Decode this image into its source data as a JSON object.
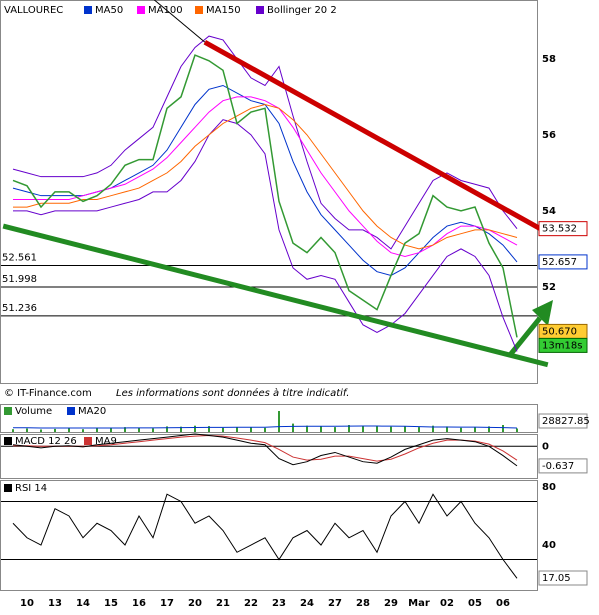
{
  "chart_data": [
    {
      "type": "price",
      "title": "VALLOUREC",
      "ylim": [
        49.47,
        59.55
      ],
      "yticks": [
        52,
        54,
        56,
        58
      ],
      "price": {
        "color": "#339933",
        "values": [
          54.8,
          54.66,
          54.1,
          54.5,
          54.5,
          54.25,
          54.4,
          54.7,
          55.2,
          55.35,
          55.35,
          56.7,
          57.0,
          58.1,
          57.95,
          57.7,
          56.3,
          56.6,
          56.7,
          54.25,
          53.15,
          52.9,
          53.3,
          52.9,
          51.9,
          51.65,
          51.4,
          52.3,
          53.15,
          53.4,
          54.4,
          54.1,
          54.0,
          54.1,
          53.15,
          52.5,
          50.67
        ],
        "last_label": "50.670",
        "timer": "13m18s"
      },
      "series": [
        {
          "name": "MA50",
          "color": "#0033cc",
          "values": [
            54.6,
            54.5,
            54.4,
            54.4,
            54.4,
            54.4,
            54.5,
            54.6,
            54.8,
            55.0,
            55.2,
            55.6,
            56.2,
            56.8,
            57.2,
            57.3,
            57.1,
            56.9,
            56.8,
            56.3,
            55.3,
            54.5,
            53.9,
            53.5,
            53.1,
            52.7,
            52.4,
            52.3,
            52.5,
            52.9,
            53.3,
            53.6,
            53.7,
            53.6,
            53.4,
            53.1,
            52.657
          ]
        },
        {
          "name": "MA100",
          "color": "#ff00ff",
          "values": [
            54.3,
            54.3,
            54.3,
            54.3,
            54.3,
            54.4,
            54.5,
            54.6,
            54.7,
            54.9,
            55.1,
            55.4,
            55.8,
            56.2,
            56.6,
            56.9,
            57.0,
            57.0,
            56.9,
            56.7,
            56.2,
            55.6,
            55.0,
            54.5,
            54.0,
            53.6,
            53.2,
            52.9,
            52.8,
            52.9,
            53.1,
            53.4,
            53.6,
            53.6,
            53.5,
            53.3,
            53.1
          ]
        },
        {
          "name": "MA150",
          "color": "#ff6600",
          "values": [
            54.1,
            54.1,
            54.2,
            54.2,
            54.2,
            54.3,
            54.3,
            54.4,
            54.5,
            54.6,
            54.8,
            55.0,
            55.3,
            55.7,
            56.0,
            56.3,
            56.5,
            56.7,
            56.8,
            56.7,
            56.4,
            56.0,
            55.5,
            55.0,
            54.5,
            54.0,
            53.6,
            53.3,
            53.1,
            53.0,
            53.1,
            53.3,
            53.4,
            53.5,
            53.5,
            53.4,
            53.3
          ]
        }
      ],
      "bollinger": {
        "name": "Bollinger 20 2",
        "color": "#6600cc",
        "upper": [
          55.1,
          55.0,
          54.9,
          54.9,
          54.9,
          54.9,
          55.0,
          55.2,
          55.6,
          55.9,
          56.2,
          57.0,
          57.8,
          58.3,
          58.6,
          58.5,
          58.0,
          57.5,
          57.3,
          57.8,
          56.5,
          55.3,
          54.2,
          53.8,
          53.5,
          53.5,
          53.3,
          53.0,
          53.6,
          54.2,
          54.8,
          55.0,
          54.8,
          54.7,
          54.6,
          54.0,
          53.532
        ],
        "lower": [
          54.0,
          54.0,
          53.9,
          54.0,
          54.0,
          54.0,
          54.0,
          54.1,
          54.2,
          54.3,
          54.5,
          54.5,
          54.8,
          55.3,
          56.0,
          56.4,
          56.3,
          56.0,
          55.5,
          53.5,
          52.5,
          52.2,
          52.3,
          52.2,
          51.6,
          51.0,
          50.8,
          51.0,
          51.3,
          51.8,
          52.3,
          52.8,
          53.0,
          52.8,
          52.3,
          51.2,
          50.3
        ]
      },
      "levels": [
        52.561,
        51.998,
        51.236
      ],
      "trendlines": [
        {
          "color": "#cc0000",
          "x": [
            13.7,
            38.2
          ],
          "y": [
            58.44,
            53.42
          ]
        },
        {
          "color": "#228b22",
          "x": [
            -0.7,
            38.2
          ],
          "y": [
            53.6,
            49.95
          ]
        },
        {
          "color": "#000000",
          "x": [
            10.1,
            13.7
          ],
          "y": [
            59.55,
            58.44
          ]
        }
      ]
    },
    {
      "type": "volume",
      "ylim": [
        0,
        200000
      ],
      "series": [
        {
          "name": "Volume",
          "color": "#339933",
          "values": [
            20000,
            25000,
            18000,
            22000,
            30000,
            20000,
            25000,
            28000,
            35000,
            30000,
            26000,
            40000,
            38000,
            45000,
            42000,
            30000,
            35000,
            32000,
            30000,
            150000,
            60000,
            45000,
            40000,
            35000,
            50000,
            45000,
            40000,
            38000,
            42000,
            35000,
            45000,
            40000,
            30000,
            35000,
            40000,
            50000,
            25000
          ]
        },
        {
          "name": "MA20",
          "color": "#0033cc",
          "values": [
            30000,
            30000,
            29000,
            29000,
            29000,
            28500,
            28500,
            28500,
            29000,
            29500,
            29500,
            30000,
            31000,
            32000,
            33000,
            33000,
            33500,
            34000,
            34000,
            38000,
            40000,
            41000,
            41000,
            41500,
            42000,
            42500,
            42500,
            42000,
            41500,
            38000,
            36000,
            35500,
            35000,
            34500,
            33000,
            31000,
            28827.85
          ]
        }
      ]
    },
    {
      "type": "macd",
      "ylim": [
        -1.03,
        0.4
      ],
      "yticks": [
        0
      ],
      "series": [
        {
          "name": "MACD 12 26",
          "color": "#000000",
          "values": [
            0.05,
            0,
            -0.05,
            0,
            0.02,
            -0.02,
            0.05,
            0.1,
            0.15,
            0.2,
            0.25,
            0.3,
            0.35,
            0.4,
            0.35,
            0.3,
            0.2,
            0.1,
            0.05,
            -0.4,
            -0.6,
            -0.5,
            -0.3,
            -0.2,
            -0.35,
            -0.5,
            -0.55,
            -0.35,
            -0.1,
            0.05,
            0.2,
            0.25,
            0.2,
            0.15,
            0,
            -0.3,
            -0.637
          ]
        },
        {
          "name": "MA9",
          "color": "#cc3333",
          "values": [
            0.02,
            0.02,
            0,
            0,
            0,
            0,
            0.02,
            0.05,
            0.1,
            0.15,
            0.2,
            0.25,
            0.3,
            0.33,
            0.35,
            0.33,
            0.27,
            0.2,
            0.12,
            -0.1,
            -0.35,
            -0.45,
            -0.42,
            -0.32,
            -0.32,
            -0.4,
            -0.48,
            -0.42,
            -0.25,
            -0.05,
            0.1,
            0.2,
            0.2,
            0.17,
            0.07,
            -0.15,
            -0.45
          ]
        }
      ]
    },
    {
      "type": "rsi",
      "ylim": [
        9,
        84.8
      ],
      "yticks": [
        40,
        80
      ],
      "levels": [
        30,
        70
      ],
      "categories": [
        null,
        "10",
        null,
        "13",
        null,
        "14",
        null,
        "15",
        null,
        "16",
        null,
        "17",
        null,
        "20",
        null,
        "21",
        null,
        "22",
        null,
        "23",
        null,
        "24",
        null,
        "27",
        null,
        "28",
        null,
        "29",
        null,
        "Mar",
        null,
        "02",
        null,
        "05",
        null,
        "06",
        null
      ],
      "series": [
        {
          "name": "RSI 14",
          "color": "#000000",
          "values": [
            55,
            45,
            40,
            65,
            60,
            45,
            55,
            50,
            40,
            60,
            45,
            75,
            70,
            55,
            60,
            50,
            35,
            40,
            45,
            30,
            45,
            50,
            40,
            55,
            45,
            50,
            35,
            60,
            70,
            55,
            75,
            60,
            70,
            55,
            45,
            30,
            17.05
          ]
        }
      ]
    }
  ],
  "footer": {
    "copyright": "© IT-Finance.com",
    "disclaimer": "Les informations sont données à titre indicatif."
  }
}
